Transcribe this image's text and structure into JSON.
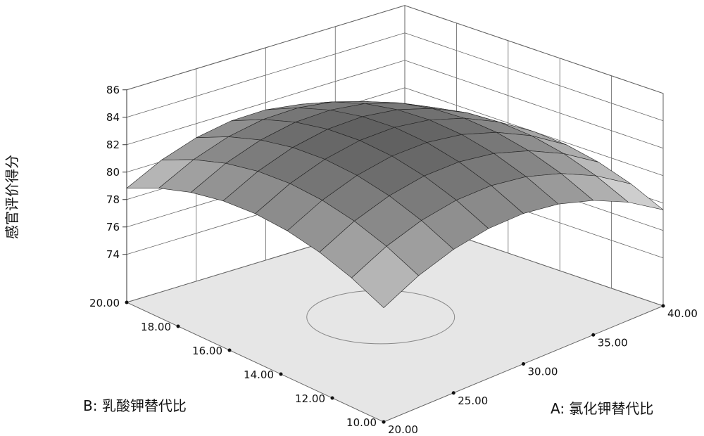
{
  "chart_data": {
    "type": "surface",
    "zlabel": "感官评价得分",
    "xlabel": "A: 氯化钾替代比",
    "ylabel": "B: 乳酸钾替代比",
    "x": [
      20,
      22.5,
      25,
      27.5,
      30,
      32.5,
      35,
      37.5,
      40
    ],
    "y": [
      10,
      11.25,
      12.5,
      13.75,
      15,
      16.25,
      17.5,
      18.75,
      20
    ],
    "z": [
      [
        78.83,
        80.11,
        80.97,
        81.43,
        81.47,
        81.1,
        80.31,
        79.12,
        77.51
      ],
      [
        79.92,
        81.2,
        82.06,
        82.52,
        82.56,
        82.19,
        81.4,
        80.21,
        78.6
      ],
      [
        80.7,
        81.98,
        82.84,
        83.3,
        83.34,
        82.97,
        82.18,
        80.99,
        79.38
      ],
      [
        81.17,
        82.45,
        83.31,
        83.77,
        83.81,
        83.44,
        82.65,
        81.46,
        79.85
      ],
      [
        81.33,
        82.61,
        83.47,
        83.93,
        83.97,
        83.6,
        82.81,
        81.62,
        80.01
      ],
      [
        81.17,
        82.45,
        83.31,
        83.77,
        83.81,
        83.44,
        82.65,
        81.46,
        79.85
      ],
      [
        80.7,
        81.98,
        82.84,
        83.3,
        83.34,
        82.97,
        82.18,
        80.99,
        79.38
      ],
      [
        79.92,
        81.2,
        82.06,
        82.52,
        82.56,
        82.19,
        81.4,
        80.21,
        78.6
      ],
      [
        78.83,
        80.11,
        80.97,
        81.43,
        81.47,
        81.1,
        80.31,
        79.12,
        77.51
      ]
    ],
    "xlim": [
      20,
      40
    ],
    "ylim": [
      10,
      20
    ],
    "zlim": [
      70.5,
      86
    ],
    "xticks": [
      {
        "value": 20,
        "label": "20.00"
      },
      {
        "value": 25,
        "label": "25.00"
      },
      {
        "value": 30,
        "label": "30.00"
      },
      {
        "value": 35,
        "label": "35.00"
      },
      {
        "value": 40,
        "label": "40.00"
      }
    ],
    "yticks": [
      {
        "value": 10,
        "label": "10.00"
      },
      {
        "value": 12,
        "label": "12.00"
      },
      {
        "value": 14,
        "label": "14.00"
      },
      {
        "value": 16,
        "label": "16.00"
      },
      {
        "value": 18,
        "label": "18.00"
      },
      {
        "value": 20,
        "label": "20.00"
      }
    ],
    "zticks": [
      74,
      76,
      78,
      80,
      82,
      84,
      86
    ],
    "grid": true
  }
}
